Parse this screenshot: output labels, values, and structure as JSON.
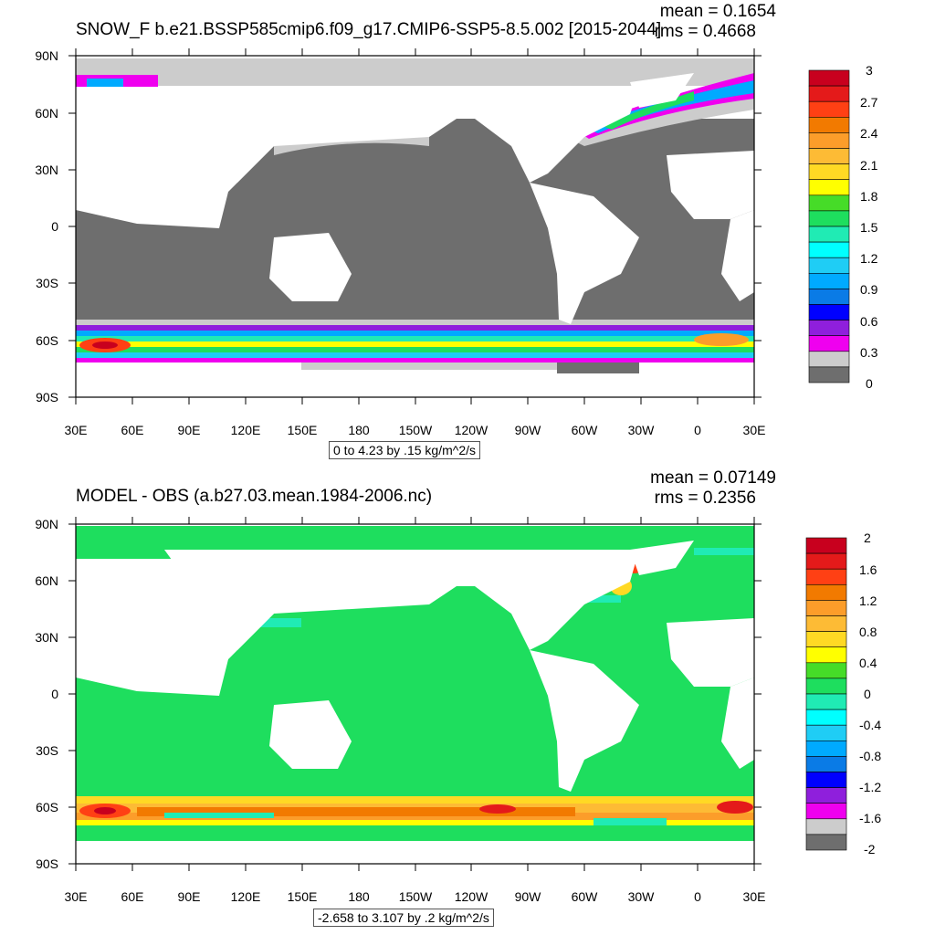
{
  "top": {
    "title": "SNOW_F b.e21.BSSP585cmip6.f09_g17.CMIP6-SSP5-8.5.002 [2015-2044]",
    "mean": "mean = 0.1654",
    "rms": "rms = 0.4668",
    "info": "0 to 4.23 by .15 kg/m^2/s",
    "colorbar_labels": [
      "3",
      "2.7",
      "2.4",
      "2.1",
      "1.8",
      "1.5",
      "1.2",
      "0.9",
      "0.6",
      "0.3",
      "0"
    ],
    "colors": [
      "#c8001e",
      "#e41a1a",
      "#ff4014",
      "#f27a00",
      "#fc9d2a",
      "#fdbb35",
      "#ffd924",
      "#ffff00",
      "#46dc28",
      "#1ede5e",
      "#20ebb4",
      "#00ffff",
      "#1fcdf5",
      "#00aaff",
      "#0a7be6",
      "#0000ff",
      "#8f1fdc",
      "#ef00ef",
      "#cccccc",
      "#6e6e6e"
    ]
  },
  "bottom": {
    "title": "MODEL - OBS (a.b27.03.mean.1984-2006.nc)",
    "mean": "mean = 0.07149",
    "rms": "rms = 0.2356",
    "info": "-2.658 to 3.107 by .2 kg/m^2/s",
    "colorbar_labels": [
      "2",
      "1.6",
      "1.2",
      "0.8",
      "0.4",
      "0",
      "-0.4",
      "-0.8",
      "-1.2",
      "-1.6",
      "-2"
    ],
    "colors": [
      "#c8001e",
      "#e41a1a",
      "#ff4014",
      "#f27a00",
      "#fc9d2a",
      "#fdbb35",
      "#ffd924",
      "#ffff00",
      "#46dc28",
      "#1ede5e",
      "#20ebb4",
      "#00ffff",
      "#1fcdf5",
      "#00aaff",
      "#0a7be6",
      "#0000ff",
      "#8f1fdc",
      "#ef00ef",
      "#cccccc",
      "#6e6e6e"
    ]
  },
  "lat_labels": [
    "90N",
    "60N",
    "30N",
    "0",
    "30S",
    "60S",
    "90S"
  ],
  "lon_labels": [
    "30E",
    "60E",
    "90E",
    "120E",
    "150E",
    "180",
    "150W",
    "120W",
    "90W",
    "60W",
    "30W",
    "0",
    "30E"
  ]
}
